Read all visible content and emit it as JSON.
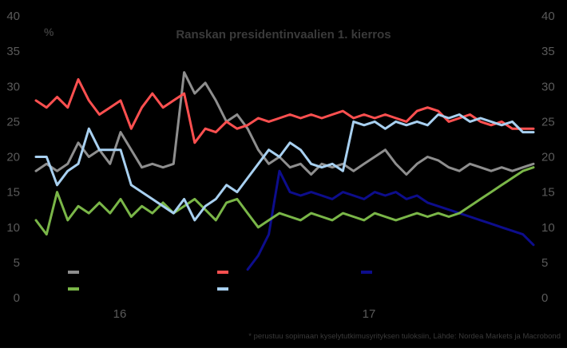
{
  "chart_data": {
    "type": "line",
    "title": "Ranskan presidentinvaalien 1. kierros",
    "ylabel": "%",
    "ylim": [
      0,
      40
    ],
    "yticks": [
      0,
      5,
      10,
      15,
      20,
      25,
      30,
      35,
      40
    ],
    "x_categories": [
      "16",
      "17"
    ],
    "footnote": "* perustuu sopimaan kyselytutkimusyrityksen tuloksiin, Lähde: Nordea Markets ja Macrobond",
    "grid": false,
    "legend": "lower-left, two rows, labels not printed",
    "colors": {
      "background": "#000000",
      "text": "#5a5a5a",
      "title": "#3a3a3a"
    },
    "series": [
      {
        "color": "#8e8e8e",
        "x": [
          0,
          0.5,
          1,
          1.5,
          2,
          2.5,
          3,
          3.5,
          4,
          4.5,
          5,
          5.5,
          6,
          6.5,
          7,
          7.5,
          8,
          8.5,
          9,
          9.5,
          10,
          10.5,
          11,
          11.5,
          12,
          12.5,
          13,
          13.5,
          14,
          14.5,
          15,
          15.5,
          16,
          16.5,
          17,
          17.5,
          18,
          18.5,
          19,
          19.5,
          20,
          20.5,
          21,
          21.5,
          22,
          22.5,
          23,
          23.5
        ],
        "values": [
          18,
          19,
          18,
          19,
          22,
          20,
          21,
          19,
          23.5,
          21,
          18.5,
          19,
          18.5,
          19,
          32,
          29,
          30.5,
          28,
          25,
          26,
          24,
          21,
          19,
          20,
          18.5,
          19,
          17.5,
          19,
          18.5,
          19,
          18,
          19,
          20,
          21,
          19,
          17.5,
          19,
          20,
          19.5,
          18.5,
          18,
          19,
          18.5,
          18,
          18.5,
          18,
          18.5,
          19
        ]
      },
      {
        "color": "#ff5050",
        "x": [
          0,
          0.5,
          1,
          1.5,
          2,
          2.5,
          3,
          3.5,
          4,
          4.5,
          5,
          5.5,
          6,
          6.5,
          7,
          7.5,
          8,
          8.5,
          9,
          9.5,
          10,
          10.5,
          11,
          11.5,
          12,
          12.5,
          13,
          13.5,
          14,
          14.5,
          15,
          15.5,
          16,
          16.5,
          17,
          17.5,
          18,
          18.5,
          19,
          19.5,
          20,
          20.5,
          21,
          21.5,
          22,
          22.5,
          23,
          23.5
        ],
        "values": [
          28,
          27,
          28.5,
          27,
          31,
          28,
          26,
          27,
          28,
          24,
          27,
          29,
          27,
          28,
          29,
          22,
          24,
          23.5,
          25,
          24,
          24.5,
          25.5,
          25,
          25.5,
          26,
          25.5,
          26,
          25.5,
          26,
          26.5,
          25.5,
          26,
          25.5,
          26,
          25.5,
          25,
          26.5,
          27,
          26.5,
          25,
          25.5,
          26,
          25,
          24.5,
          25,
          24,
          24,
          24
        ]
      },
      {
        "color": "#0d0d8c",
        "x": [
          10,
          10.5,
          11,
          11.5,
          12,
          12.5,
          13,
          13.5,
          14,
          14.5,
          15,
          15.5,
          16,
          16.5,
          17,
          17.5,
          18,
          18.5,
          19,
          19.5,
          20,
          20.5,
          21,
          21.5,
          22,
          22.5,
          23,
          23.5
        ],
        "values": [
          4,
          6,
          9,
          18,
          15,
          14.5,
          15,
          14.5,
          14,
          15,
          14.5,
          14,
          15,
          14.5,
          15,
          14,
          14.5,
          13.5,
          13,
          12.5,
          12,
          11.5,
          11,
          10.5,
          10,
          9.5,
          9,
          7.5
        ]
      },
      {
        "color": "#7ab648",
        "x": [
          0,
          0.5,
          1,
          1.5,
          2,
          2.5,
          3,
          3.5,
          4,
          4.5,
          5,
          5.5,
          6,
          6.5,
          7,
          7.5,
          8,
          8.5,
          9,
          9.5,
          10,
          10.5,
          11,
          11.5,
          12,
          12.5,
          13,
          13.5,
          14,
          14.5,
          15,
          15.5,
          16,
          16.5,
          17,
          17.5,
          18,
          18.5,
          19,
          19.5,
          20,
          20.5,
          21,
          21.5,
          22,
          22.5,
          23,
          23.5
        ],
        "values": [
          11,
          9,
          15,
          11,
          13,
          12,
          13.5,
          12,
          14,
          11.5,
          13,
          12,
          13.5,
          12,
          13,
          14,
          12.5,
          11,
          13.5,
          14,
          12,
          10,
          11,
          12,
          11.5,
          11,
          12,
          11.5,
          11,
          12,
          11.5,
          11,
          12,
          11.5,
          11,
          11.5,
          12,
          11.5,
          12,
          11.5,
          12,
          13,
          14,
          15,
          16,
          17,
          18,
          18.5
        ]
      },
      {
        "color": "#a8d0f0",
        "x": [
          0,
          0.5,
          1,
          1.5,
          2,
          2.5,
          3,
          3.5,
          4,
          4.5,
          5,
          5.5,
          6,
          6.5,
          7,
          7.5,
          8,
          8.5,
          9,
          9.5,
          10,
          10.5,
          11,
          11.5,
          12,
          12.5,
          13,
          13.5,
          14,
          14.5,
          15,
          15.5,
          16,
          16.5,
          17,
          17.5,
          18,
          18.5,
          19,
          19.5,
          20,
          20.5,
          21,
          21.5,
          22,
          22.5,
          23,
          23.5
        ],
        "values": [
          20,
          20,
          16,
          18,
          19,
          24,
          21,
          21,
          21,
          16,
          15,
          14,
          13,
          12,
          14,
          11,
          13,
          14,
          16,
          15,
          17,
          19,
          21,
          20,
          22,
          21,
          19,
          18.5,
          19,
          18,
          25,
          24.5,
          25,
          24,
          25,
          24.5,
          25,
          24.5,
          26,
          25.5,
          26,
          25,
          25.5,
          25,
          24.5,
          25,
          23.5,
          23.5
        ]
      }
    ]
  }
}
